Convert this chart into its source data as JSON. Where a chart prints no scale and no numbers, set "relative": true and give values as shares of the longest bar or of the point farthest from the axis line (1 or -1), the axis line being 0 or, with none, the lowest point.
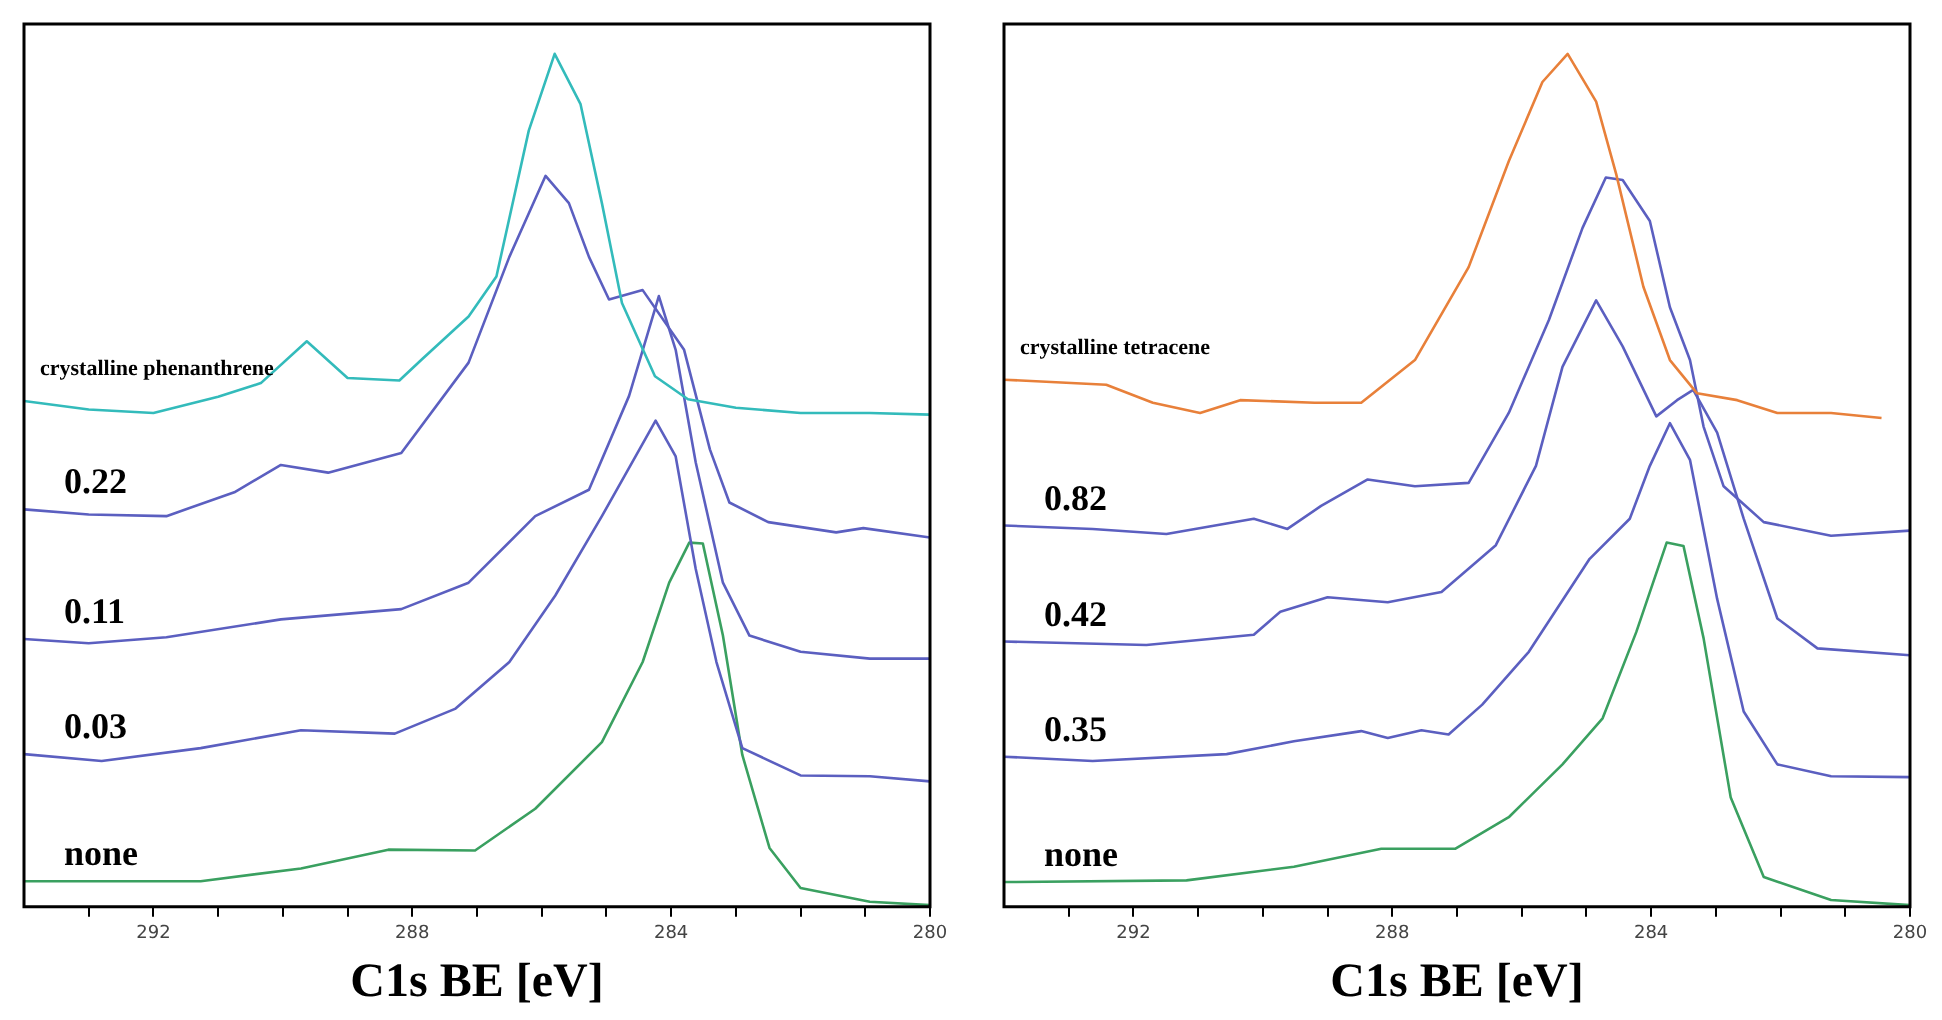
{
  "chart_data": [
    {
      "type": "line",
      "xlabel": "C1s BE [eV]",
      "xlim": [
        294,
        280
      ],
      "relative": true,
      "tick_labels": "x",
      "xticks": [
        {
          "value": 293,
          "label": null
        },
        292,
        {
          "value": 291,
          "label": null
        },
        {
          "value": 290,
          "label": null
        },
        {
          "value": 289,
          "label": null
        },
        288,
        {
          "value": 287,
          "label": null
        },
        {
          "value": 286,
          "label": null
        },
        {
          "value": 285,
          "label": null
        },
        284,
        {
          "value": 283,
          "label": null
        },
        {
          "value": 282,
          "label": null
        },
        {
          "value": 281,
          "label": null
        },
        280
      ],
      "series": [
        {
          "name": "crystalline phenanthrene",
          "color": "#33bbbb",
          "x": [
            294,
            293,
            292,
            291,
            290.34,
            289.63,
            289.0,
            288.2,
            287.85,
            287.13,
            286.7,
            286.2,
            285.8,
            285.4,
            285.07,
            284.76,
            284.25,
            283.74,
            283.0,
            282.0,
            280.93,
            280
          ],
          "values": [
            0.593,
            0.583,
            0.579,
            0.598,
            0.614,
            0.663,
            0.62,
            0.617,
            0.642,
            0.692,
            0.739,
            0.91,
            1.0,
            0.941,
            0.825,
            0.708,
            0.622,
            0.595,
            0.585,
            0.579,
            0.579,
            0.577
          ]
        },
        {
          "name": "0.22",
          "color": "#5b5fc0",
          "x": [
            294,
            293.0,
            291.8,
            290.75,
            290.03,
            289.3,
            288.17,
            287.13,
            286.5,
            285.94,
            285.58,
            285.27,
            284.96,
            284.44,
            283.8,
            283.4,
            283.1,
            282.5,
            281.45,
            281.03,
            280
          ],
          "values": [
            0.466,
            0.46,
            0.458,
            0.486,
            0.518,
            0.509,
            0.532,
            0.638,
            0.762,
            0.857,
            0.825,
            0.762,
            0.712,
            0.723,
            0.653,
            0.536,
            0.474,
            0.451,
            0.439,
            0.444,
            0.433
          ]
        },
        {
          "name": "0.11",
          "color": "#5b5fc0",
          "x": [
            294,
            293.0,
            291.8,
            290.03,
            288.17,
            287.13,
            286.1,
            285.27,
            284.65,
            284.19,
            283.93,
            283.62,
            283.2,
            282.79,
            282.0,
            280.93,
            280
          ],
          "values": [
            0.314,
            0.309,
            0.316,
            0.337,
            0.349,
            0.38,
            0.458,
            0.489,
            0.599,
            0.716,
            0.653,
            0.521,
            0.38,
            0.318,
            0.299,
            0.291,
            0.291
          ]
        },
        {
          "name": "0.03",
          "color": "#5b5fc0",
          "x": [
            294,
            292.8,
            291.27,
            289.72,
            288.27,
            287.34,
            286.5,
            285.79,
            285.07,
            284.55,
            284.24,
            283.93,
            283.62,
            283.3,
            282.9,
            282.0,
            280.93,
            280
          ],
          "values": [
            0.179,
            0.171,
            0.186,
            0.207,
            0.203,
            0.232,
            0.287,
            0.365,
            0.458,
            0.528,
            0.57,
            0.528,
            0.396,
            0.287,
            0.186,
            0.154,
            0.153,
            0.147
          ]
        },
        {
          "name": "none",
          "color": "#3aa060",
          "x": [
            294,
            291.27,
            289.72,
            288.37,
            287.03,
            286.1,
            285.07,
            284.44,
            284.03,
            283.72,
            283.51,
            283.2,
            282.9,
            282.48,
            282.0,
            280.93,
            280
          ],
          "values": [
            0.03,
            0.03,
            0.045,
            0.067,
            0.066,
            0.115,
            0.193,
            0.287,
            0.38,
            0.427,
            0.426,
            0.318,
            0.178,
            0.069,
            0.022,
            0.006,
            0.002
          ]
        }
      ]
    },
    {
      "type": "line",
      "xlabel": "C1s BE [eV]",
      "xlim": [
        294,
        280
      ],
      "relative": true,
      "tick_labels": "x",
      "xticks": [
        {
          "value": 293,
          "label": null
        },
        292,
        {
          "value": 291,
          "label": null
        },
        {
          "value": 290,
          "label": null
        },
        {
          "value": 289,
          "label": null
        },
        288,
        {
          "value": 287,
          "label": null
        },
        {
          "value": 286,
          "label": null
        },
        {
          "value": 285,
          "label": null
        },
        284,
        {
          "value": 283,
          "label": null
        },
        {
          "value": 282,
          "label": null
        },
        {
          "value": 281,
          "label": null
        },
        280
      ],
      "series": [
        {
          "name": "crystalline tetracene",
          "color": "#e8803a",
          "x": [
            294,
            292.42,
            291.7,
            290.97,
            290.35,
            289.2,
            288.48,
            287.65,
            286.82,
            286.2,
            285.68,
            285.29,
            284.85,
            284.54,
            284.12,
            283.71,
            283.29,
            282.67,
            282.05,
            281.22,
            280.44
          ],
          "values": [
            0.618,
            0.612,
            0.591,
            0.579,
            0.594,
            0.591,
            0.591,
            0.641,
            0.75,
            0.874,
            0.967,
            1.0,
            0.944,
            0.859,
            0.727,
            0.641,
            0.602,
            0.594,
            0.579,
            0.579,
            0.573
          ]
        },
        {
          "name": "0.82",
          "color": "#5b5fc0",
          "x": [
            294,
            292.63,
            291.49,
            290.14,
            289.62,
            289.1,
            288.38,
            287.65,
            286.82,
            286.2,
            285.58,
            285.06,
            284.7,
            284.44,
            284.02,
            283.71,
            283.4,
            283.19,
            282.88,
            282.26,
            281.22,
            280
          ],
          "values": [
            0.447,
            0.443,
            0.437,
            0.455,
            0.443,
            0.47,
            0.501,
            0.493,
            0.497,
            0.579,
            0.688,
            0.796,
            0.855,
            0.852,
            0.804,
            0.703,
            0.641,
            0.563,
            0.493,
            0.451,
            0.435,
            0.441
          ]
        },
        {
          "name": "0.42",
          "color": "#5b5fc0",
          "x": [
            294,
            291.8,
            290.14,
            289.73,
            289.0,
            288.07,
            287.24,
            286.4,
            285.78,
            285.37,
            284.85,
            284.44,
            283.92,
            283.6,
            283.35,
            282.98,
            282.57,
            282.05,
            281.43,
            280
          ],
          "values": [
            0.311,
            0.307,
            0.319,
            0.346,
            0.363,
            0.357,
            0.369,
            0.424,
            0.517,
            0.633,
            0.711,
            0.657,
            0.575,
            0.594,
            0.606,
            0.556,
            0.455,
            0.338,
            0.303,
            0.295
          ]
        },
        {
          "name": "0.35",
          "color": "#5b5fc0",
          "x": [
            294,
            292.63,
            290.56,
            289.52,
            288.48,
            288.07,
            287.55,
            287.13,
            286.61,
            285.89,
            284.95,
            284.33,
            284.02,
            283.71,
            283.4,
            282.98,
            282.57,
            282.05,
            281.22,
            280
          ],
          "values": [
            0.176,
            0.171,
            0.179,
            0.194,
            0.206,
            0.198,
            0.207,
            0.202,
            0.237,
            0.299,
            0.408,
            0.455,
            0.517,
            0.567,
            0.524,
            0.361,
            0.229,
            0.167,
            0.153,
            0.152
          ]
        },
        {
          "name": "none",
          "color": "#3aa060",
          "x": [
            294,
            291.18,
            289.52,
            288.17,
            287.03,
            286.2,
            285.37,
            284.75,
            284.23,
            283.76,
            283.5,
            283.19,
            282.77,
            282.26,
            281.22,
            280
          ],
          "values": [
            0.029,
            0.031,
            0.047,
            0.068,
            0.068,
            0.105,
            0.167,
            0.221,
            0.322,
            0.427,
            0.423,
            0.315,
            0.128,
            0.035,
            0.008,
            0.002
          ]
        }
      ]
    }
  ]
}
